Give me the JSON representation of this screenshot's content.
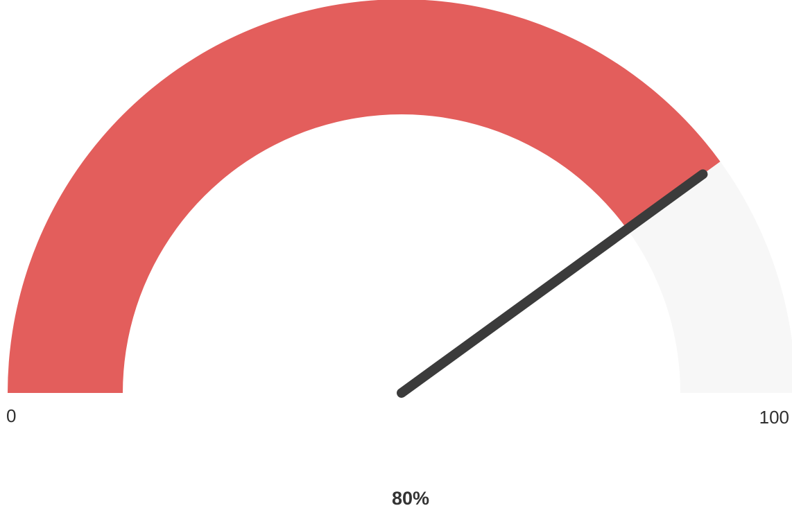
{
  "chart_data": {
    "type": "gauge",
    "value": 80,
    "min": 0,
    "max": 100,
    "min_label": "0",
    "max_label": "100",
    "value_label": "80%",
    "colors": {
      "filled": "#e35e5c",
      "track": "#f7f7f7",
      "needle": "#3b3b3b"
    }
  }
}
